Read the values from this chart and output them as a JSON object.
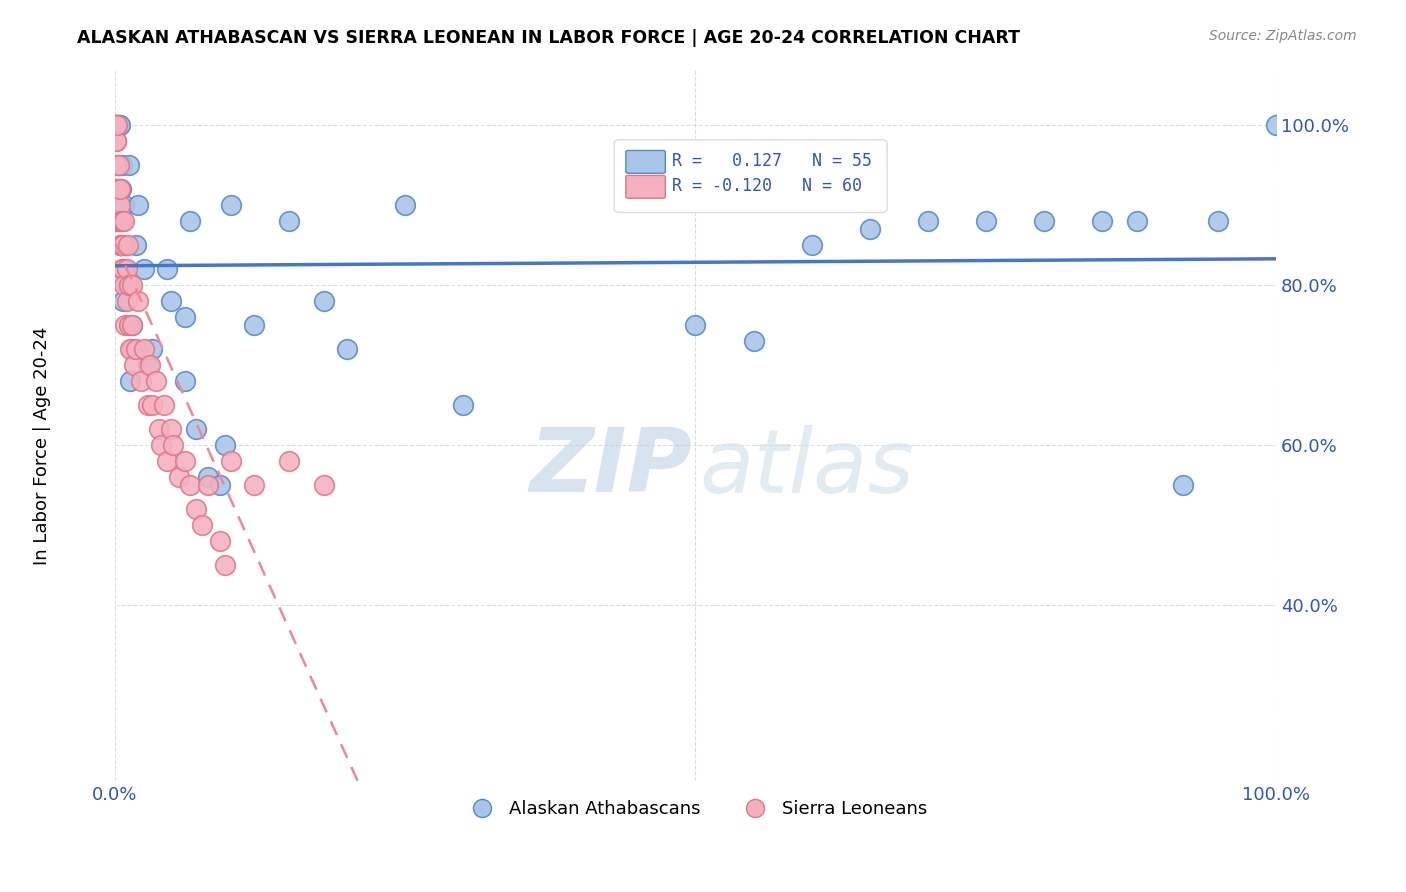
{
  "title": "ALASKAN ATHABASCAN VS SIERRA LEONEAN IN LABOR FORCE | AGE 20-24 CORRELATION CHART",
  "source": "Source: ZipAtlas.com",
  "ylabel": "In Labor Force | Age 20-24",
  "legend_blue_r": "0.127",
  "legend_blue_n": "55",
  "legend_pink_r": "-0.120",
  "legend_pink_n": "60",
  "watermark_zip": "ZIP",
  "watermark_atlas": "atlas",
  "blue_color": "#a8c4e8",
  "blue_edge": "#5588cc",
  "pink_color": "#f5b0be",
  "pink_edge": "#dd7788",
  "trend_blue": "#4477cc",
  "trend_pink": "#ee8899",
  "blue_x": [
    0.001,
    0.001,
    0.002,
    0.002,
    0.003,
    0.003,
    0.003,
    0.004,
    0.004,
    0.005,
    0.005,
    0.006,
    0.007,
    0.008,
    0.008,
    0.009,
    0.01,
    0.012,
    0.013,
    0.015,
    0.015,
    0.018,
    0.02,
    0.025,
    0.028,
    0.032,
    0.045,
    0.048,
    0.06,
    0.06,
    0.065,
    0.07,
    0.08,
    0.09,
    0.095,
    0.1,
    0.12,
    0.15,
    0.18,
    0.2,
    0.25,
    0.3,
    0.45,
    0.5,
    0.55,
    0.6,
    0.65,
    0.7,
    0.75,
    0.8,
    0.85,
    0.88,
    0.92,
    0.95,
    1.0
  ],
  "blue_y": [
    0.88,
    0.92,
    1.0,
    1.0,
    1.0,
    1.0,
    0.95,
    1.0,
    0.88,
    0.85,
    0.92,
    0.95,
    0.78,
    0.82,
    0.9,
    0.85,
    0.8,
    0.95,
    0.68,
    0.72,
    0.75,
    0.85,
    0.9,
    0.82,
    0.7,
    0.72,
    0.82,
    0.78,
    0.76,
    0.68,
    0.88,
    0.62,
    0.56,
    0.55,
    0.6,
    0.9,
    0.75,
    0.88,
    0.78,
    0.72,
    0.9,
    0.65,
    0.95,
    0.75,
    0.73,
    0.85,
    0.87,
    0.88,
    0.88,
    0.88,
    0.88,
    0.88,
    0.55,
    0.88,
    1.0
  ],
  "pink_x": [
    0.0003,
    0.0005,
    0.0006,
    0.0008,
    0.001,
    0.001,
    0.001,
    0.002,
    0.002,
    0.002,
    0.003,
    0.003,
    0.003,
    0.004,
    0.004,
    0.004,
    0.005,
    0.005,
    0.006,
    0.006,
    0.007,
    0.007,
    0.008,
    0.008,
    0.009,
    0.01,
    0.01,
    0.011,
    0.012,
    0.012,
    0.013,
    0.015,
    0.015,
    0.016,
    0.018,
    0.02,
    0.022,
    0.025,
    0.028,
    0.03,
    0.032,
    0.035,
    0.038,
    0.04,
    0.042,
    0.045,
    0.048,
    0.05,
    0.055,
    0.06,
    0.065,
    0.07,
    0.075,
    0.08,
    0.09,
    0.095,
    0.1,
    0.12,
    0.15,
    0.18
  ],
  "pink_y": [
    1.0,
    1.0,
    0.98,
    0.95,
    1.0,
    0.98,
    0.95,
    0.92,
    1.0,
    0.88,
    0.95,
    0.92,
    0.88,
    0.9,
    0.85,
    0.92,
    0.88,
    0.85,
    0.82,
    0.88,
    0.85,
    0.82,
    0.8,
    0.88,
    0.75,
    0.82,
    0.78,
    0.85,
    0.8,
    0.75,
    0.72,
    0.8,
    0.75,
    0.7,
    0.72,
    0.78,
    0.68,
    0.72,
    0.65,
    0.7,
    0.65,
    0.68,
    0.62,
    0.6,
    0.65,
    0.58,
    0.62,
    0.6,
    0.56,
    0.58,
    0.55,
    0.52,
    0.5,
    0.55,
    0.48,
    0.45,
    0.58,
    0.55,
    0.58,
    0.55
  ],
  "xlim": [
    0.0,
    1.0
  ],
  "ylim": [
    0.18,
    1.07
  ],
  "yticks": [
    0.4,
    0.6,
    0.8,
    1.0
  ],
  "ytick_labels": [
    "40.0%",
    "60.0%",
    "80.0%",
    "100.0%"
  ],
  "xticks": [
    0.0,
    1.0
  ],
  "xtick_labels": [
    "0.0%",
    "100.0%"
  ],
  "figsize": [
    14.06,
    8.92
  ],
  "dpi": 100
}
